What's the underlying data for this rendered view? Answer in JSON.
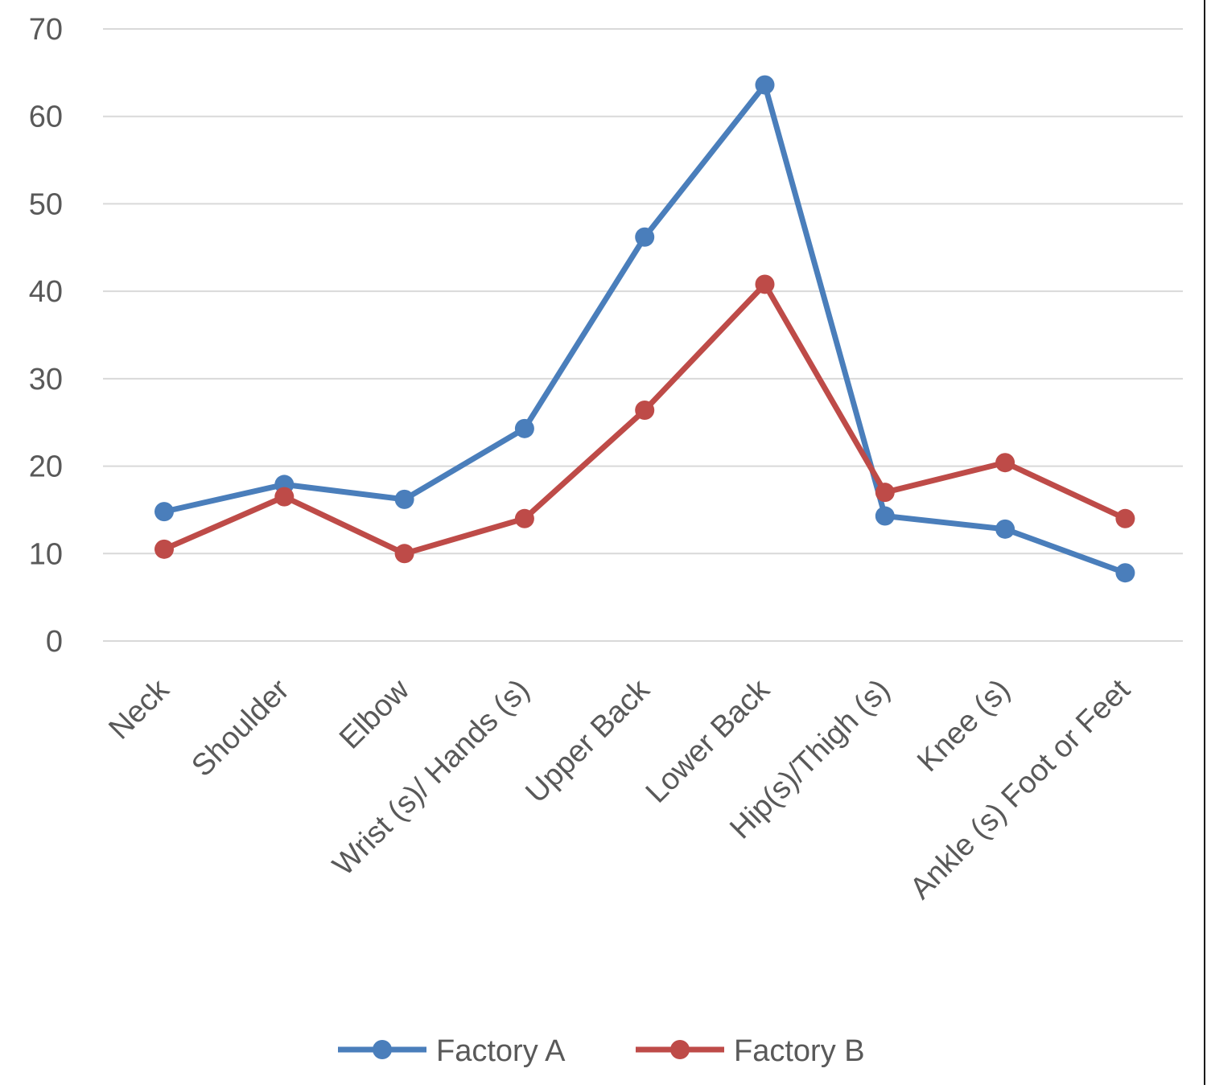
{
  "chart_data": {
    "type": "line",
    "title": "",
    "xlabel": "",
    "ylabel": "",
    "categories": [
      "Neck",
      "Shoulder",
      "Elbow",
      "Wrist (s)/ Hands (s)",
      "Upper Back",
      "Lower Back",
      "Hip(s)/Thigh (s)",
      "Knee (s)",
      "Ankle (s) Foot or Feet"
    ],
    "y_ticks": [
      "0",
      "10",
      "20",
      "30",
      "40",
      "50",
      "60",
      "70"
    ],
    "ylim": [
      0,
      70
    ],
    "grid": true,
    "legend_position": "bottom",
    "series": [
      {
        "name": "Factory A",
        "color": "#4a7ebb",
        "values": [
          14.8,
          17.9,
          16.2,
          24.3,
          46.2,
          63.6,
          14.3,
          12.8,
          7.8
        ]
      },
      {
        "name": "Factory B",
        "color": "#be4b48",
        "values": [
          10.5,
          16.5,
          10.0,
          14.0,
          26.4,
          40.8,
          17.0,
          20.4,
          14.0
        ]
      }
    ]
  }
}
